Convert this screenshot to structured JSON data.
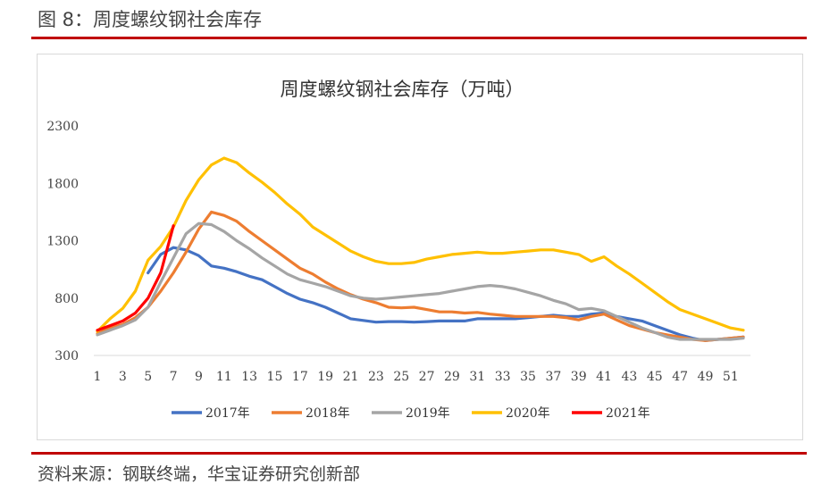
{
  "figure_title": "图 8：周度螺纹钢社会库存",
  "source": "资料来源：钢联终端，华宝证券研究创新部",
  "chart_data": {
    "type": "line",
    "title": "周度螺纹钢社会库存（万吨）",
    "xlabel": "",
    "ylabel": "",
    "xlim": [
      1,
      52
    ],
    "ylim": [
      300,
      2300
    ],
    "x_ticks": [
      1,
      3,
      5,
      7,
      9,
      11,
      13,
      15,
      17,
      19,
      21,
      23,
      25,
      27,
      29,
      31,
      33,
      35,
      37,
      39,
      41,
      43,
      45,
      47,
      49,
      51
    ],
    "y_ticks": [
      300,
      800,
      1300,
      1800,
      2300
    ],
    "grid": false,
    "legend_position": "bottom",
    "series": [
      {
        "name": "2017年",
        "color": "#4472c4",
        "x": [
          5,
          6,
          7,
          8,
          9,
          10,
          11,
          12,
          13,
          14,
          15,
          16,
          17,
          18,
          19,
          20,
          21,
          22,
          23,
          24,
          25,
          26,
          27,
          28,
          29,
          30,
          31,
          32,
          33,
          34,
          35,
          36,
          37,
          38,
          39,
          40,
          41,
          42,
          43,
          44,
          45,
          46,
          47,
          48,
          49,
          50,
          51,
          52
        ],
        "y": [
          1020,
          1180,
          1240,
          1220,
          1170,
          1080,
          1060,
          1030,
          990,
          960,
          900,
          840,
          790,
          760,
          720,
          670,
          620,
          605,
          590,
          595,
          595,
          590,
          595,
          600,
          600,
          600,
          620,
          620,
          620,
          620,
          630,
          640,
          650,
          640,
          640,
          660,
          670,
          640,
          620,
          600,
          560,
          520,
          480,
          450,
          430,
          440,
          450,
          460
        ]
      },
      {
        "name": "2018年",
        "color": "#ed7d31",
        "x": [
          1,
          2,
          3,
          4,
          5,
          6,
          7,
          8,
          9,
          10,
          11,
          12,
          13,
          14,
          15,
          16,
          17,
          18,
          19,
          20,
          21,
          22,
          23,
          24,
          25,
          26,
          27,
          28,
          29,
          30,
          31,
          32,
          33,
          34,
          35,
          36,
          37,
          38,
          39,
          40,
          41,
          42,
          43,
          44,
          45,
          46,
          47,
          48,
          49,
          50,
          51,
          52
        ],
        "y": [
          490,
          540,
          570,
          630,
          720,
          860,
          1020,
          1200,
          1400,
          1550,
          1520,
          1470,
          1380,
          1300,
          1220,
          1140,
          1060,
          1010,
          940,
          880,
          830,
          790,
          760,
          720,
          715,
          720,
          700,
          680,
          680,
          670,
          675,
          660,
          650,
          640,
          640,
          640,
          640,
          630,
          610,
          640,
          660,
          610,
          560,
          530,
          500,
          480,
          460,
          440,
          430,
          440,
          450,
          460
        ]
      },
      {
        "name": "2019年",
        "color": "#a5a5a5",
        "x": [
          1,
          2,
          3,
          4,
          5,
          6,
          7,
          8,
          9,
          10,
          11,
          12,
          13,
          14,
          15,
          16,
          17,
          18,
          19,
          20,
          21,
          22,
          23,
          24,
          25,
          26,
          27,
          28,
          29,
          30,
          31,
          32,
          33,
          34,
          35,
          36,
          37,
          38,
          39,
          40,
          41,
          42,
          43,
          44,
          45,
          46,
          47,
          48,
          49,
          50,
          51,
          52
        ],
        "y": [
          480,
          520,
          560,
          610,
          720,
          940,
          1150,
          1360,
          1450,
          1440,
          1380,
          1300,
          1230,
          1150,
          1080,
          1010,
          960,
          930,
          900,
          860,
          820,
          800,
          790,
          800,
          810,
          820,
          830,
          840,
          860,
          880,
          900,
          910,
          900,
          880,
          850,
          820,
          780,
          750,
          700,
          710,
          690,
          640,
          590,
          540,
          500,
          460,
          440,
          440,
          440,
          440,
          440,
          450
        ]
      },
      {
        "name": "2020年",
        "color": "#ffc000",
        "x": [
          1,
          2,
          3,
          4,
          5,
          6,
          7,
          8,
          9,
          10,
          11,
          12,
          13,
          14,
          15,
          16,
          17,
          18,
          19,
          20,
          21,
          22,
          23,
          24,
          25,
          26,
          27,
          28,
          29,
          30,
          31,
          32,
          33,
          34,
          35,
          36,
          37,
          38,
          39,
          40,
          41,
          42,
          43,
          44,
          45,
          46,
          47,
          48,
          49,
          50,
          51,
          52
        ],
        "y": [
          510,
          620,
          710,
          860,
          1130,
          1250,
          1420,
          1650,
          1830,
          1960,
          2020,
          1980,
          1890,
          1810,
          1720,
          1620,
          1530,
          1420,
          1350,
          1280,
          1210,
          1160,
          1120,
          1100,
          1100,
          1110,
          1140,
          1160,
          1180,
          1190,
          1200,
          1190,
          1190,
          1200,
          1210,
          1220,
          1220,
          1200,
          1180,
          1120,
          1160,
          1080,
          1010,
          930,
          850,
          770,
          700,
          660,
          620,
          580,
          540,
          520
        ]
      },
      {
        "name": "2021年",
        "color": "#ff0000",
        "x": [
          1,
          2,
          3,
          4,
          5,
          6,
          7
        ],
        "y": [
          520,
          560,
          600,
          670,
          800,
          1020,
          1430
        ]
      }
    ]
  }
}
